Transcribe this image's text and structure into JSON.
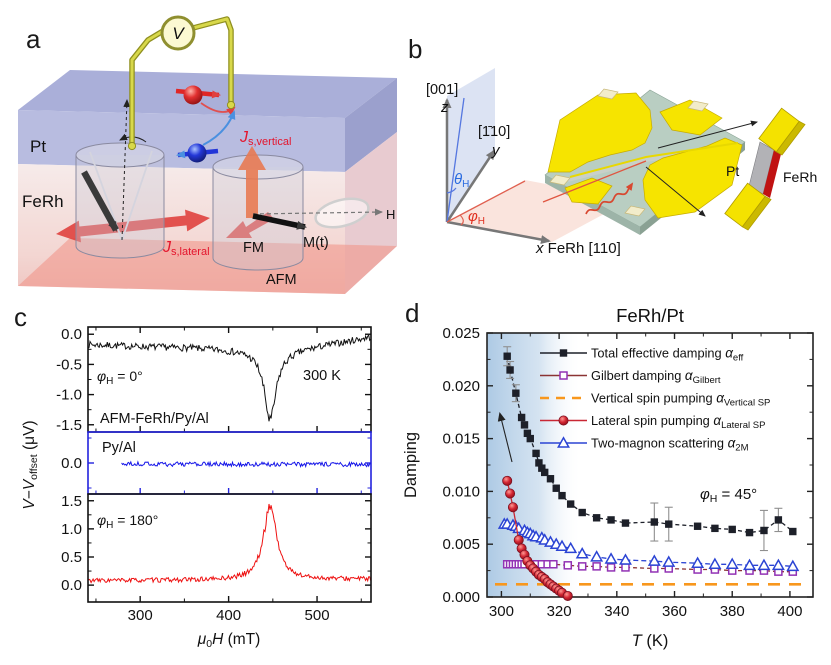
{
  "figure": {
    "panels": {
      "a": "a",
      "b": "b",
      "c": "c",
      "d": "d"
    },
    "panel_a": {
      "voltmeter": "V",
      "pt": "Pt",
      "ferh": "FeRh",
      "js_vertical": {
        "sym": "J",
        "sub": "s,vertical"
      },
      "js_lateral": {
        "sym": "J",
        "sub": "s,lateral"
      },
      "fm": "FM",
      "mt": "M(t)",
      "afm": "AFM",
      "h": "H"
    },
    "panel_b": {
      "dir_z": "[001]",
      "z_axis": "z",
      "dir_y": "[1̄10]",
      "y_axis": "y",
      "theta": {
        "sym": "θ",
        "sub": "H"
      },
      "phi": {
        "sym": "φ",
        "sub": "H"
      },
      "x_axis": "x",
      "x_axis_rest": " FeRh [110]",
      "pt": "Pt",
      "ferh": "FeRh"
    }
  },
  "chart_data": [
    {
      "type": "line",
      "panel": "c",
      "xlabel": {
        "mu": "μ",
        "sub": "0",
        "H": "H",
        "unit": " (mT)"
      },
      "ylabel": {
        "V1": "V",
        "minus": "−",
        "V2": "V",
        "sub": "offset",
        "unit": " (μV)"
      },
      "xlim": [
        241,
        561
      ],
      "xticks": [
        300,
        400,
        500
      ],
      "xminor": [
        250,
        350,
        450,
        550
      ],
      "grid": false,
      "subpanels": [
        {
          "sample": "AFM-FeRh/Py/Al",
          "color": "#111111",
          "frame": "#111111",
          "angle": {
            "sym": "φ",
            "sub": "H",
            "rest": " = 0°"
          },
          "temperature": "300 K",
          "ylim": [
            0.12,
            -1.62
          ],
          "yticks": [
            0.0,
            -0.5,
            -1.0,
            -1.5
          ],
          "yminor": [
            -0.25,
            -0.75,
            -1.25
          ],
          "signal": {
            "x_start": 241,
            "x_end": 561,
            "noise": 0.055,
            "anchors": [
              [
                241,
                -0.17
              ],
              [
                300,
                -0.2
              ],
              [
                360,
                -0.22
              ],
              [
                420,
                -0.26
              ],
              [
                447,
                -0.28
              ],
              [
                470,
                -0.26
              ],
              [
                500,
                -0.19
              ],
              [
                530,
                -0.12
              ],
              [
                561,
                -0.04
              ]
            ],
            "peak_center": 447,
            "peak_hwhm": 8,
            "peak_amp": -1.15
          }
        },
        {
          "sample": "Py/Al",
          "color": "#1616e8",
          "frame": "#2323dd",
          "ylim": [
            0.62,
            -0.62
          ],
          "yticks": [
            0.0
          ],
          "yminor": [
            0.5,
            -0.5
          ],
          "signal": {
            "x_start": 279,
            "x_end": 561,
            "noise": 0.045,
            "anchors": [
              [
                279,
                -0.02
              ],
              [
                561,
                -0.03
              ]
            ],
            "peak_center": 447,
            "peak_hwhm": 9,
            "peak_amp": 0
          }
        },
        {
          "sample": "",
          "color": "#ee1111",
          "frame": "#111111",
          "angle": {
            "sym": "φ",
            "sub": "H",
            "rest": " = 180°"
          },
          "ylim": [
            1.62,
            -0.3
          ],
          "yticks": [
            1.5,
            1.0,
            0.5,
            0.0
          ],
          "yminor": [
            1.25,
            0.75,
            0.25
          ],
          "signal": {
            "x_start": 241,
            "x_end": 561,
            "noise": 0.04,
            "anchors": [
              [
                241,
                0.08
              ],
              [
                450,
                0.09
              ],
              [
                561,
                0.11
              ]
            ],
            "peak_center": 447,
            "peak_hwhm": 9,
            "peak_amp": 1.33
          }
        }
      ]
    },
    {
      "type": "scatter",
      "panel": "d",
      "title": "FeRh/Pt",
      "ylabel": "Damping",
      "xlabel": {
        "T": "T",
        "unit": " (K)"
      },
      "xlim": [
        295,
        408
      ],
      "ylim": [
        0,
        0.025
      ],
      "xticks": [
        300,
        320,
        340,
        360,
        380,
        400
      ],
      "xminor": [
        310,
        330,
        350,
        370,
        390
      ],
      "yticks": [
        0,
        0.005,
        0.01,
        0.015,
        0.02,
        0.025
      ],
      "yminor": [
        0.0025,
        0.0075,
        0.0125,
        0.0175,
        0.0225
      ],
      "grid": false,
      "legend_position": "top-right-inside",
      "annotation": {
        "sym": "φ",
        "sub": "H",
        "rest": " = 45°"
      },
      "shading": {
        "from": 295,
        "to": 328,
        "color": "#a9c7e3"
      },
      "series": [
        {
          "label": "Total effective damping ",
          "sym": "α",
          "sub": "eff",
          "marker": "square_filled",
          "color": "#1d2029",
          "line_color": "#1d2029",
          "dash": "4,3",
          "points": [
            [
              302,
              0.0228,
              0.0009
            ],
            [
              303,
              0.0215,
              0.0008
            ],
            [
              305,
              0.0193,
              0.0008
            ],
            [
              307,
              0.017
            ],
            [
              308,
              0.0163
            ],
            [
              309,
              0.0155
            ],
            [
              310,
              0.015
            ],
            [
              312,
              0.0136
            ],
            [
              313,
              0.0127
            ],
            [
              314,
              0.0122
            ],
            [
              315,
              0.0118
            ],
            [
              317,
              0.0112
            ],
            [
              319,
              0.0103
            ],
            [
              321,
              0.0096
            ],
            [
              324,
              0.0088
            ],
            [
              328,
              0.008
            ],
            [
              333,
              0.0075
            ],
            [
              338,
              0.0073
            ],
            [
              343,
              0.007
            ],
            [
              353,
              0.0071,
              0.0018
            ],
            [
              358,
              0.0069,
              0.0016
            ],
            [
              368,
              0.0067
            ],
            [
              374,
              0.0065
            ],
            [
              380,
              0.0064
            ],
            [
              386,
              0.0061
            ],
            [
              391,
              0.0063,
              0.0019
            ],
            [
              396,
              0.0073,
              0.0011
            ],
            [
              401,
              0.0062
            ]
          ]
        },
        {
          "label": "Gilbert damping ",
          "sym": "α",
          "sub": "Gilbert",
          "marker": "square_open",
          "color": "#9232b4",
          "line_color": "#8b3434",
          "dash": "4,3",
          "points": [
            [
              302,
              0.0031
            ],
            [
              303,
              0.0031
            ],
            [
              304,
              0.0031
            ],
            [
              305,
              0.0031
            ],
            [
              306,
              0.0031
            ],
            [
              307,
              0.0031
            ],
            [
              308,
              0.0031
            ],
            [
              310,
              0.0031
            ],
            [
              312,
              0.0031
            ],
            [
              314,
              0.0031
            ],
            [
              316,
              0.0031
            ],
            [
              318,
              0.0031
            ],
            [
              323,
              0.003
            ],
            [
              328,
              0.0029
            ],
            [
              333,
              0.0029
            ],
            [
              338,
              0.0028
            ],
            [
              343,
              0.0028
            ],
            [
              353,
              0.0027
            ],
            [
              358,
              0.0027
            ],
            [
              368,
              0.0026
            ],
            [
              374,
              0.0026
            ],
            [
              380,
              0.0025
            ],
            [
              386,
              0.0025
            ],
            [
              391,
              0.0025
            ],
            [
              396,
              0.0024
            ],
            [
              401,
              0.0024
            ]
          ]
        },
        {
          "label": "Vertical spin pumping ",
          "sym": "α",
          "sub": "Vertical SP",
          "marker": "none",
          "color": "#f8971d",
          "line_color": "#f8971d",
          "dash": "12,9",
          "constant": 0.0012
        },
        {
          "label": "Lateral spin pumping ",
          "sym": "α",
          "sub": "Lateral SP",
          "marker": "circle_filled",
          "color": "#c92734",
          "line_color": "#c92734",
          "dash": "",
          "points": [
            [
              302,
              0.011
            ],
            [
              303,
              0.0098
            ],
            [
              304,
              0.0085
            ],
            [
              306,
              0.0054
            ],
            [
              307,
              0.0046
            ],
            [
              308,
              0.004
            ],
            [
              309,
              0.0034
            ],
            [
              310,
              0.003
            ],
            [
              311,
              0.0027
            ],
            [
              312,
              0.0024
            ],
            [
              313,
              0.0021
            ],
            [
              314,
              0.0019
            ],
            [
              315,
              0.0017
            ],
            [
              316,
              0.0014
            ],
            [
              317,
              0.0012
            ],
            [
              318,
              0.001
            ],
            [
              319,
              0.0008
            ],
            [
              320,
              0.0006
            ],
            [
              321,
              0.0004
            ],
            [
              323,
              0.0001
            ]
          ]
        },
        {
          "label": "Two-magnon scattering ",
          "sym": "α",
          "sub": "2M",
          "marker": "triangle_open",
          "color": "#2b44d4",
          "line_color": "#2b44d4",
          "dash": "5,3",
          "points": [
            [
              301,
              0.0069
            ],
            [
              302,
              0.0069
            ],
            [
              304,
              0.0068
            ],
            [
              305,
              0.0067
            ],
            [
              306,
              0.0065
            ],
            [
              308,
              0.0063
            ],
            [
              309,
              0.0061
            ],
            [
              310,
              0.006
            ],
            [
              311,
              0.0058
            ],
            [
              312,
              0.0057
            ],
            [
              314,
              0.0056
            ],
            [
              315,
              0.0054
            ],
            [
              317,
              0.0052
            ],
            [
              319,
              0.005
            ],
            [
              321,
              0.0048
            ],
            [
              324,
              0.0046
            ],
            [
              328,
              0.0041
            ],
            [
              333,
              0.0038
            ],
            [
              338,
              0.0036
            ],
            [
              343,
              0.0035
            ],
            [
              353,
              0.0034
            ],
            [
              358,
              0.0033
            ],
            [
              368,
              0.0032
            ],
            [
              374,
              0.0031
            ],
            [
              380,
              0.0031
            ],
            [
              386,
              0.003
            ],
            [
              391,
              0.003
            ],
            [
              396,
              0.003
            ],
            [
              401,
              0.0029
            ]
          ]
        }
      ]
    }
  ]
}
